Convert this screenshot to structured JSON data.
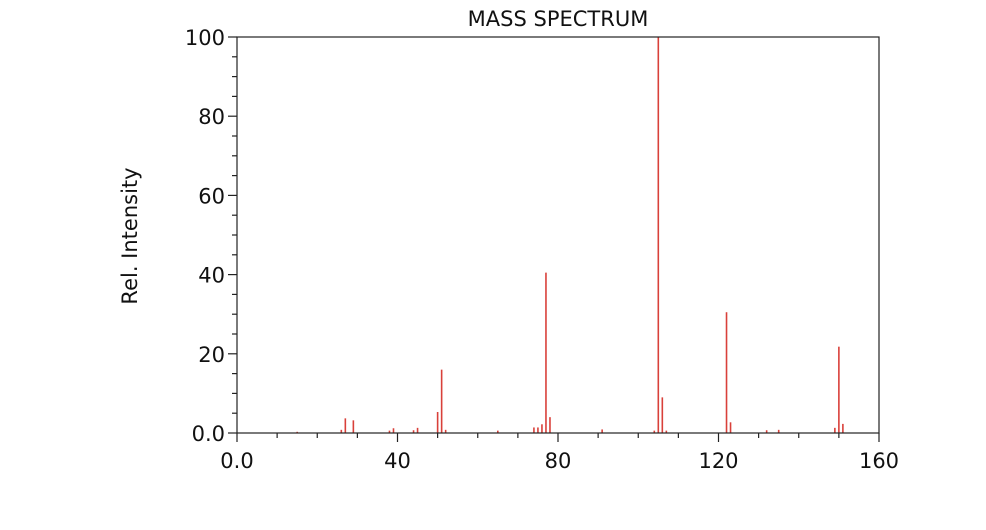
{
  "chart_data": {
    "type": "bar",
    "title": "MASS SPECTRUM",
    "xlabel": "",
    "ylabel": "Rel. Intensity",
    "xlim": [
      0,
      160
    ],
    "ylim": [
      0,
      100
    ],
    "x_ticks": [
      0,
      40,
      80,
      120,
      160
    ],
    "x_tick_labels": [
      "0.0",
      "40",
      "80",
      "120",
      "160"
    ],
    "y_ticks": [
      0,
      20,
      40,
      60,
      80,
      100
    ],
    "y_tick_labels": [
      "0.0",
      "20",
      "40",
      "60",
      "80",
      "100"
    ],
    "grid": false,
    "colors": {
      "peaks": "#d9403a",
      "axes": "#222222"
    },
    "peaks": [
      {
        "mz": 15,
        "intensity": 0.3
      },
      {
        "mz": 26,
        "intensity": 0.8
      },
      {
        "mz": 27,
        "intensity": 3.7
      },
      {
        "mz": 29,
        "intensity": 3.2
      },
      {
        "mz": 38,
        "intensity": 0.6
      },
      {
        "mz": 39,
        "intensity": 1.2
      },
      {
        "mz": 44,
        "intensity": 0.7
      },
      {
        "mz": 45,
        "intensity": 1.3
      },
      {
        "mz": 50,
        "intensity": 5.3
      },
      {
        "mz": 51,
        "intensity": 16.0
      },
      {
        "mz": 52,
        "intensity": 0.8
      },
      {
        "mz": 65,
        "intensity": 0.6
      },
      {
        "mz": 74,
        "intensity": 1.4
      },
      {
        "mz": 75,
        "intensity": 1.4
      },
      {
        "mz": 76,
        "intensity": 2.2
      },
      {
        "mz": 77,
        "intensity": 40.5
      },
      {
        "mz": 78,
        "intensity": 4.0
      },
      {
        "mz": 91,
        "intensity": 0.9
      },
      {
        "mz": 104,
        "intensity": 0.6
      },
      {
        "mz": 105,
        "intensity": 100.0
      },
      {
        "mz": 106,
        "intensity": 9.0
      },
      {
        "mz": 107,
        "intensity": 0.6
      },
      {
        "mz": 122,
        "intensity": 30.5
      },
      {
        "mz": 123,
        "intensity": 2.7
      },
      {
        "mz": 132,
        "intensity": 0.7
      },
      {
        "mz": 135,
        "intensity": 0.8
      },
      {
        "mz": 149,
        "intensity": 1.3
      },
      {
        "mz": 150,
        "intensity": 21.8
      },
      {
        "mz": 151,
        "intensity": 2.3
      }
    ]
  }
}
